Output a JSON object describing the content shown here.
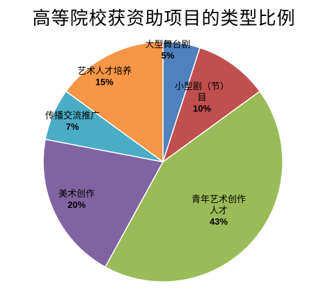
{
  "chart_data": {
    "type": "pie",
    "title": "高等院校获资助项目的类型比例",
    "slices": [
      {
        "label_lines": [
          "大型舞台剧"
        ],
        "pct_text": "5%",
        "value": 5,
        "color": "#4F81BD"
      },
      {
        "label_lines": [
          "小型剧（节）",
          "目"
        ],
        "pct_text": "10%",
        "value": 10,
        "color": "#C0504D"
      },
      {
        "label_lines": [
          "青年艺术创作",
          "人才"
        ],
        "pct_text": "43%",
        "value": 43,
        "color": "#9BBB59"
      },
      {
        "label_lines": [
          "美术创作"
        ],
        "pct_text": "20%",
        "value": 20,
        "color": "#8064A2"
      },
      {
        "label_lines": [
          "传播交流推广"
        ],
        "pct_text": "7%",
        "value": 7,
        "color": "#4BACC6"
      },
      {
        "label_lines": [
          "艺术人才培养"
        ],
        "pct_text": "15%",
        "value": 15,
        "color": "#F79646"
      }
    ]
  }
}
